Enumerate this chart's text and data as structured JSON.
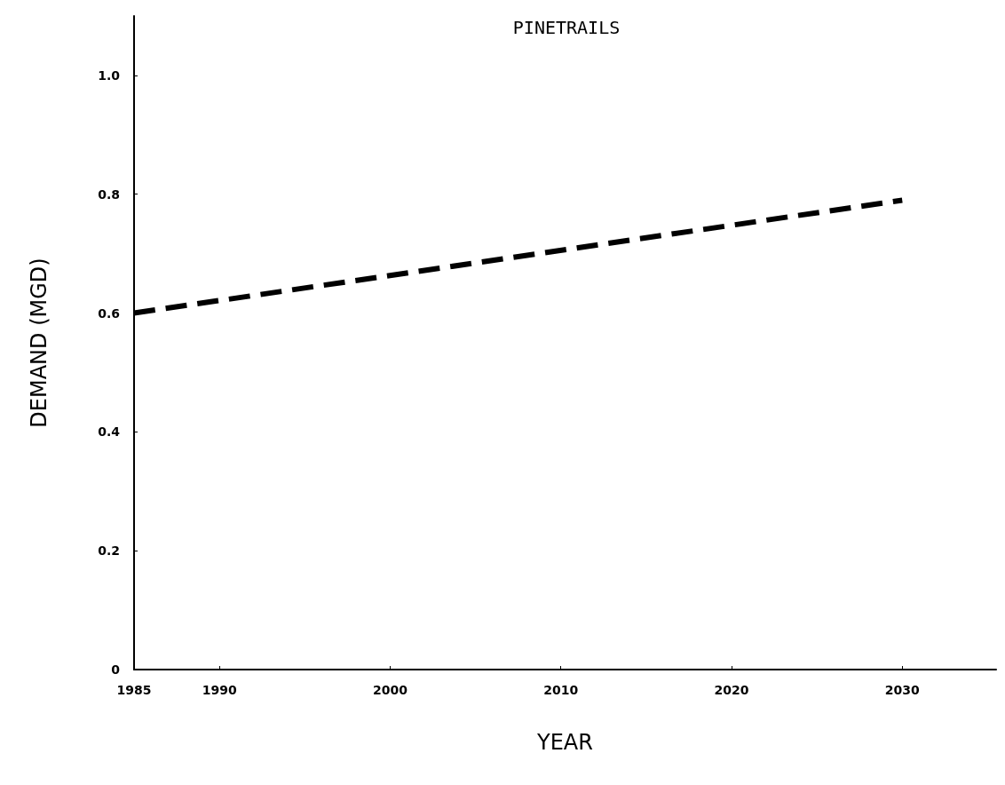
{
  "chart_data": {
    "type": "line",
    "title": "PINETRAILS",
    "xlabel": "YEAR",
    "ylabel": "DEMAND (MGD)",
    "x": [
      1985,
      2030
    ],
    "series": [
      {
        "color": "#000000",
        "values": [
          0.6,
          0.79
        ]
      }
    ],
    "xlim": [
      1985,
      2035.5
    ],
    "xticks": [
      1985,
      1990,
      2000,
      2010,
      2020,
      2030
    ],
    "ylim": [
      0,
      1.1
    ],
    "yticks": [
      0,
      {
        "value": 0.2,
        "label": "0.2"
      },
      {
        "value": 0.4,
        "label": "0.4"
      },
      {
        "value": 0.6,
        "label": "0.6"
      },
      {
        "value": 0.8,
        "label": "0.8"
      },
      {
        "value": 1.0,
        "label": "1.0"
      }
    ],
    "grid": false,
    "marker": "none",
    "line_style": "dashed"
  }
}
